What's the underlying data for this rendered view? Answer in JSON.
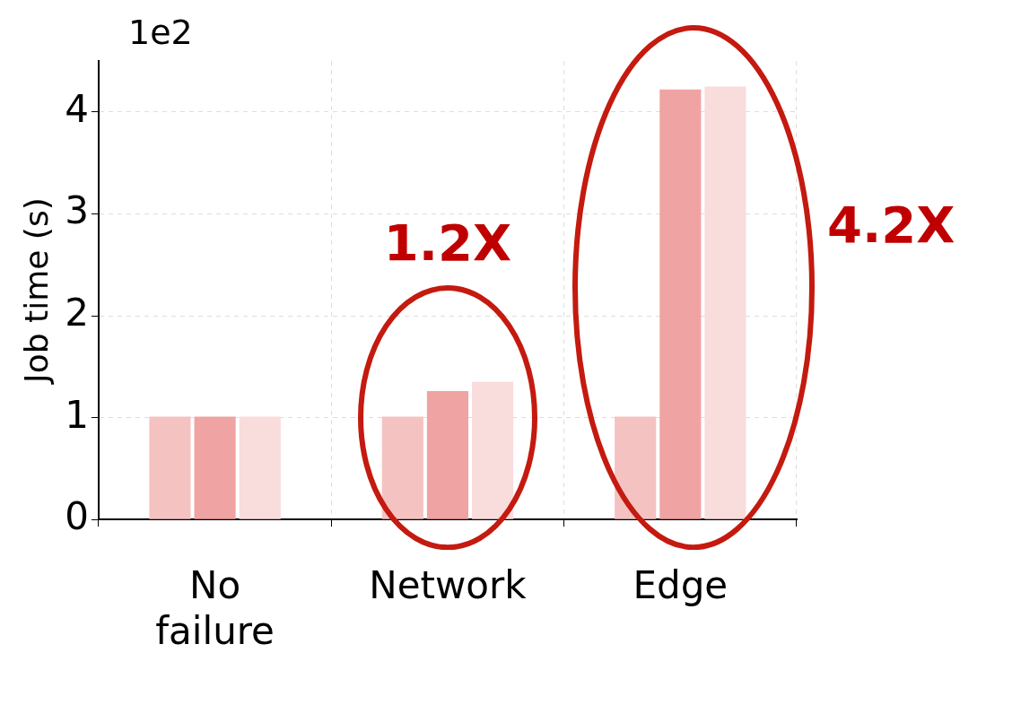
{
  "chart_data": {
    "type": "bar",
    "ylabel": "Job time (s)",
    "categories": [
      "No failure",
      "Network",
      "Edge"
    ],
    "series": [
      {
        "color": "#f5c2c2",
        "values": [
          1.01,
          1.01,
          1.01
        ]
      },
      {
        "color": "#f0a3a3",
        "values": [
          1.01,
          1.26,
          4.22
        ]
      },
      {
        "color": "#f9dcdc",
        "values": [
          1.01,
          1.35,
          4.25
        ]
      }
    ],
    "ylim": [
      0,
      4.5
    ],
    "yticks": [
      0,
      1,
      2,
      3,
      4
    ],
    "grid": true,
    "annotations": [
      "1e2",
      "1.2X",
      "4.2X"
    ]
  }
}
